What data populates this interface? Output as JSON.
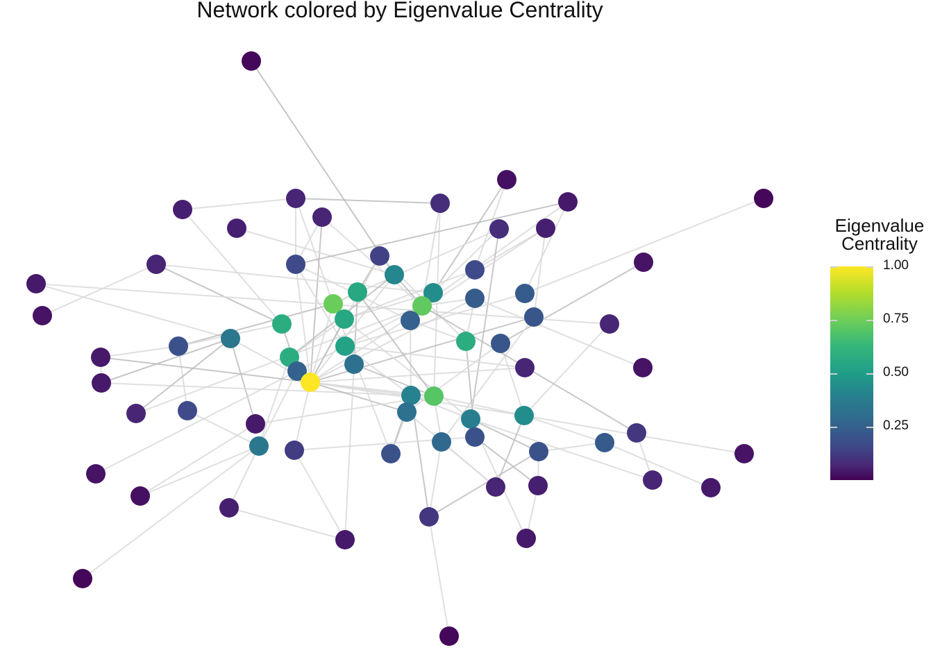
{
  "title": "Network colored by Eigenvalue Centrality",
  "legend": {
    "title_line1": "Eigenvalue",
    "title_line2": "Centrality",
    "ticks": [
      {
        "label": "1.00",
        "value": 1.0
      },
      {
        "label": "0.75",
        "value": 0.75
      },
      {
        "label": "0.50",
        "value": 0.5
      },
      {
        "label": "0.25",
        "value": 0.25
      }
    ],
    "colormap": "viridis"
  }
}
